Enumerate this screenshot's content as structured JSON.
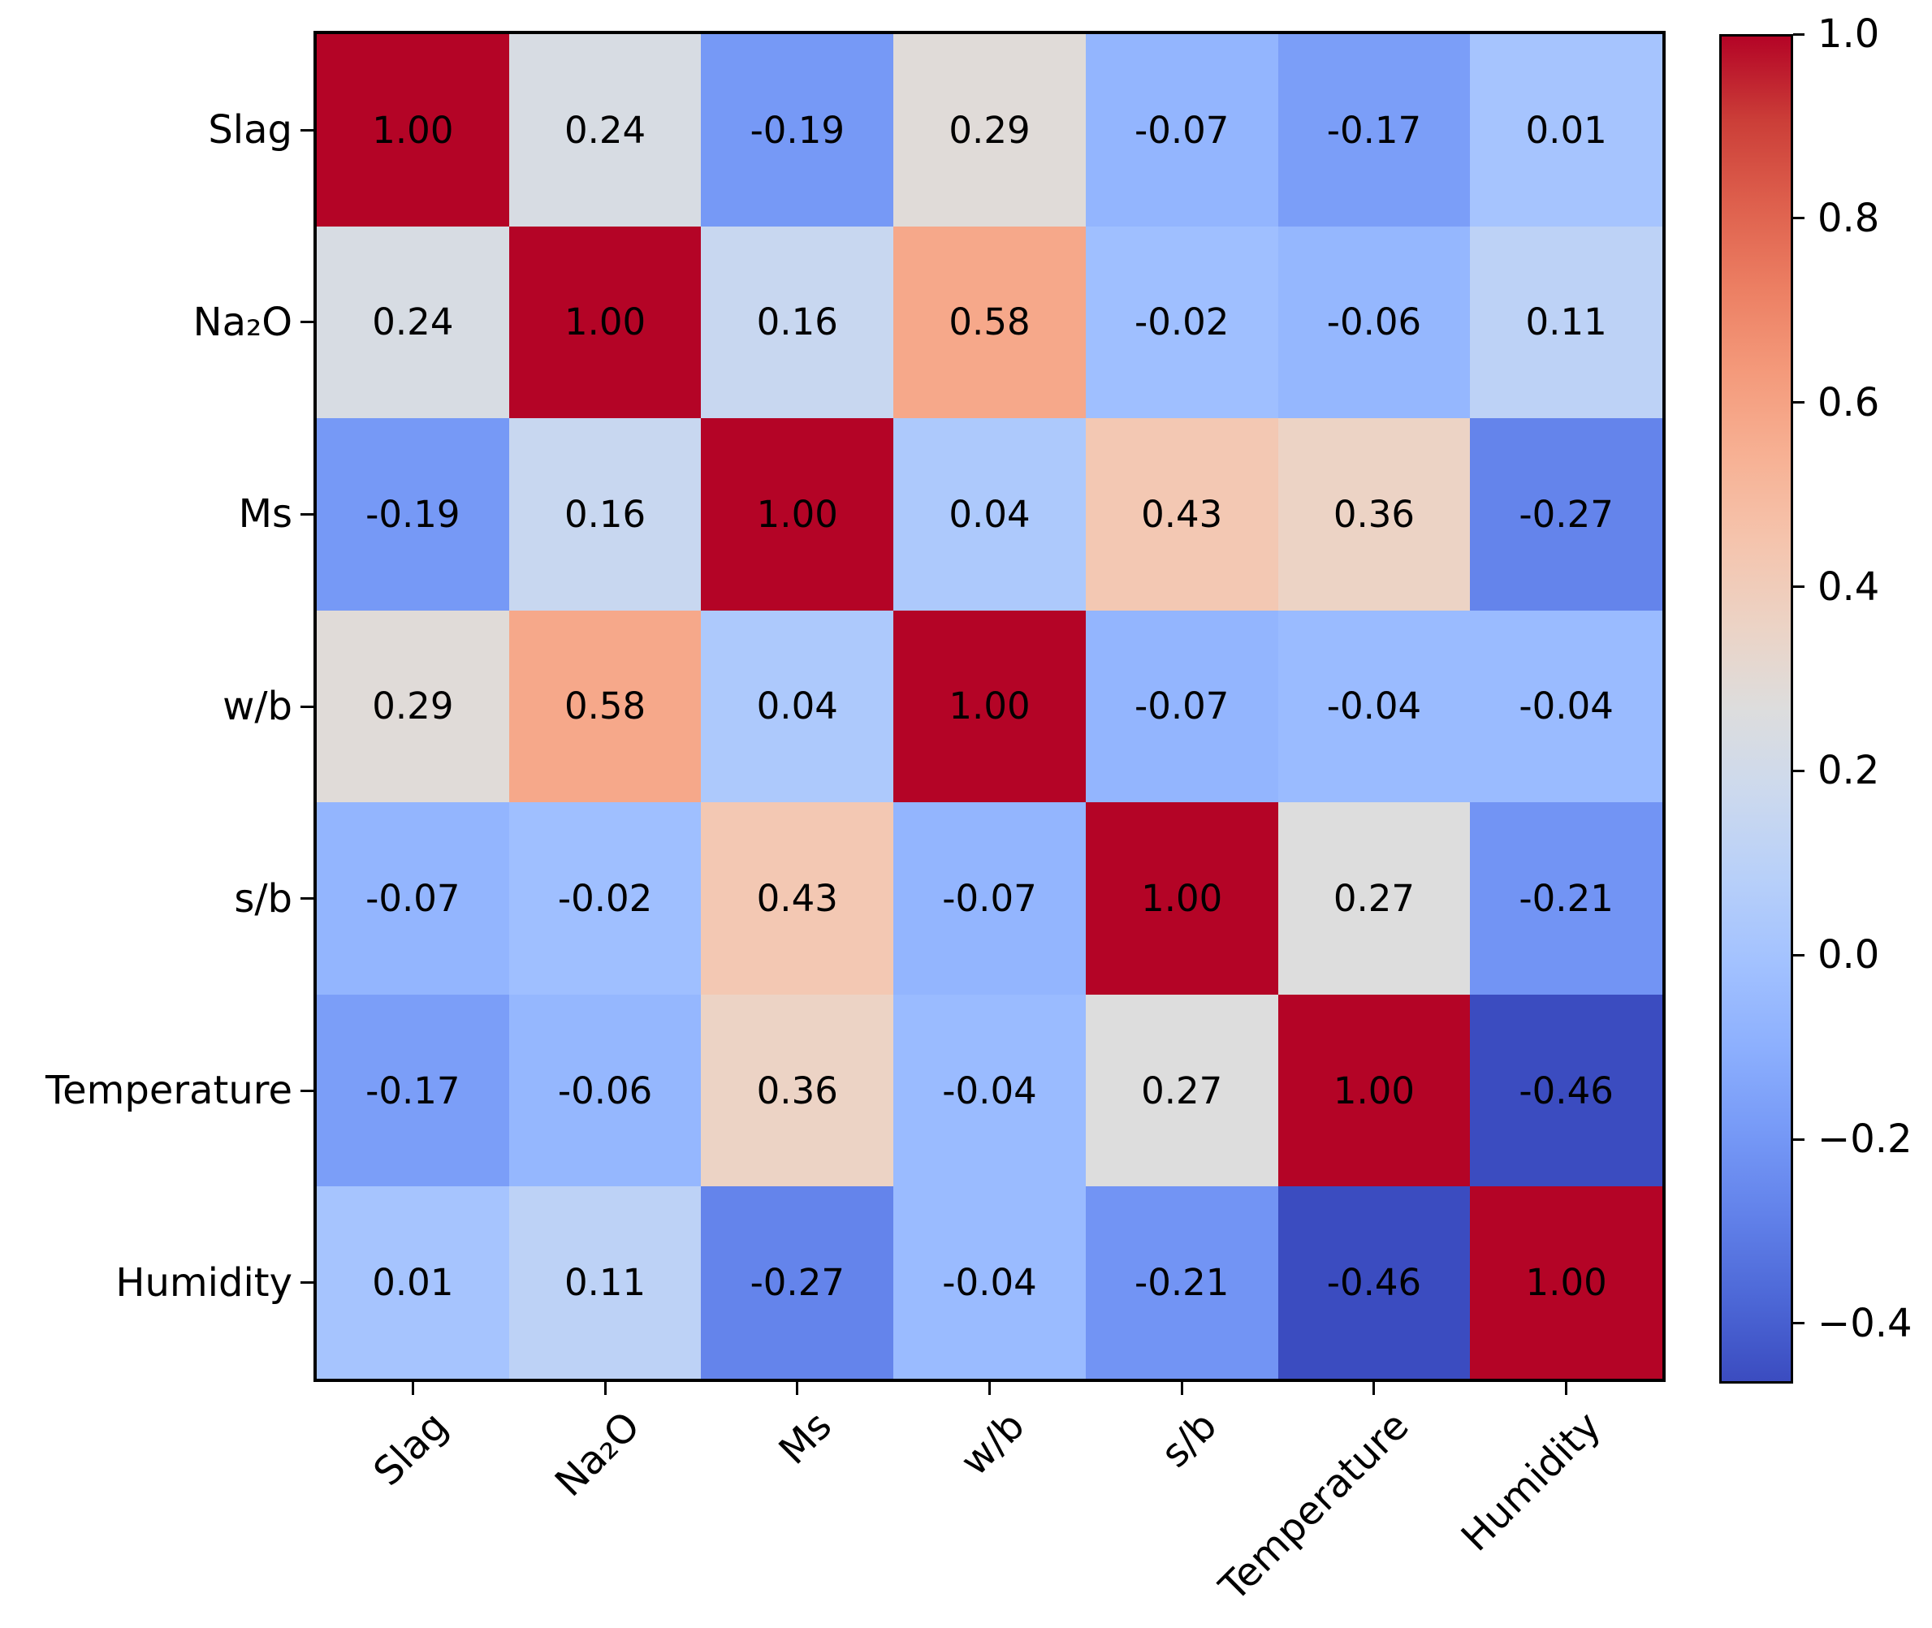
{
  "figure": {
    "background": "#ffffff",
    "text_color": "#000000",
    "axes_edge_color": "#000000"
  },
  "chart_data": {
    "type": "heatmap",
    "title": "",
    "xlabel": "",
    "ylabel": "",
    "variables": [
      "Slag",
      "Na₂O",
      "Ms",
      "w/b",
      "s/b",
      "Temperature",
      "Humidity"
    ],
    "matrix": [
      [
        1.0,
        0.24,
        -0.19,
        0.29,
        -0.07,
        -0.17,
        0.01
      ],
      [
        0.24,
        1.0,
        0.16,
        0.58,
        -0.02,
        -0.06,
        0.11
      ],
      [
        -0.19,
        0.16,
        1.0,
        0.04,
        0.43,
        0.36,
        -0.27
      ],
      [
        0.29,
        0.58,
        0.04,
        1.0,
        -0.07,
        -0.04,
        -0.04
      ],
      [
        -0.07,
        -0.02,
        0.43,
        -0.07,
        1.0,
        0.27,
        -0.21
      ],
      [
        -0.17,
        -0.06,
        0.36,
        -0.04,
        0.27,
        1.0,
        -0.46
      ],
      [
        0.01,
        0.11,
        -0.27,
        -0.04,
        -0.21,
        -0.46,
        1.0
      ]
    ],
    "cell_value_decimals": 2,
    "annotation_color": "#000000",
    "color_scale": {
      "name": "coolwarm",
      "vmin": -0.46,
      "vmax": 1.0,
      "stops": [
        {
          "t": 0.0,
          "color": "#3b4cc0"
        },
        {
          "t": 0.0625,
          "color": "#4d68d7"
        },
        {
          "t": 0.125,
          "color": "#6282ea"
        },
        {
          "t": 0.1875,
          "color": "#779af7"
        },
        {
          "t": 0.25,
          "color": "#8db0fe"
        },
        {
          "t": 0.3125,
          "color": "#a3c2ff"
        },
        {
          "t": 0.375,
          "color": "#b8d0f9"
        },
        {
          "t": 0.4375,
          "color": "#ccd9ee"
        },
        {
          "t": 0.5,
          "color": "#dddddd"
        },
        {
          "t": 0.5625,
          "color": "#ecd3c5"
        },
        {
          "t": 0.625,
          "color": "#f5c4ad"
        },
        {
          "t": 0.6875,
          "color": "#f7b194"
        },
        {
          "t": 0.75,
          "color": "#f49a7b"
        },
        {
          "t": 0.8125,
          "color": "#ec7f63"
        },
        {
          "t": 0.875,
          "color": "#de604d"
        },
        {
          "t": 0.9375,
          "color": "#cb3e38"
        },
        {
          "t": 1.0,
          "color": "#b40426"
        }
      ]
    },
    "colorbar": {
      "tick_values": [
        1.0,
        0.8,
        0.6,
        0.4,
        0.2,
        0.0,
        -0.2,
        -0.4
      ],
      "tick_labels": [
        "1.0",
        "0.8",
        "0.6",
        "0.4",
        "0.2",
        "0.0",
        "−0.2",
        "−0.4"
      ]
    },
    "legend_position": "right-colorbar",
    "grid": false
  }
}
